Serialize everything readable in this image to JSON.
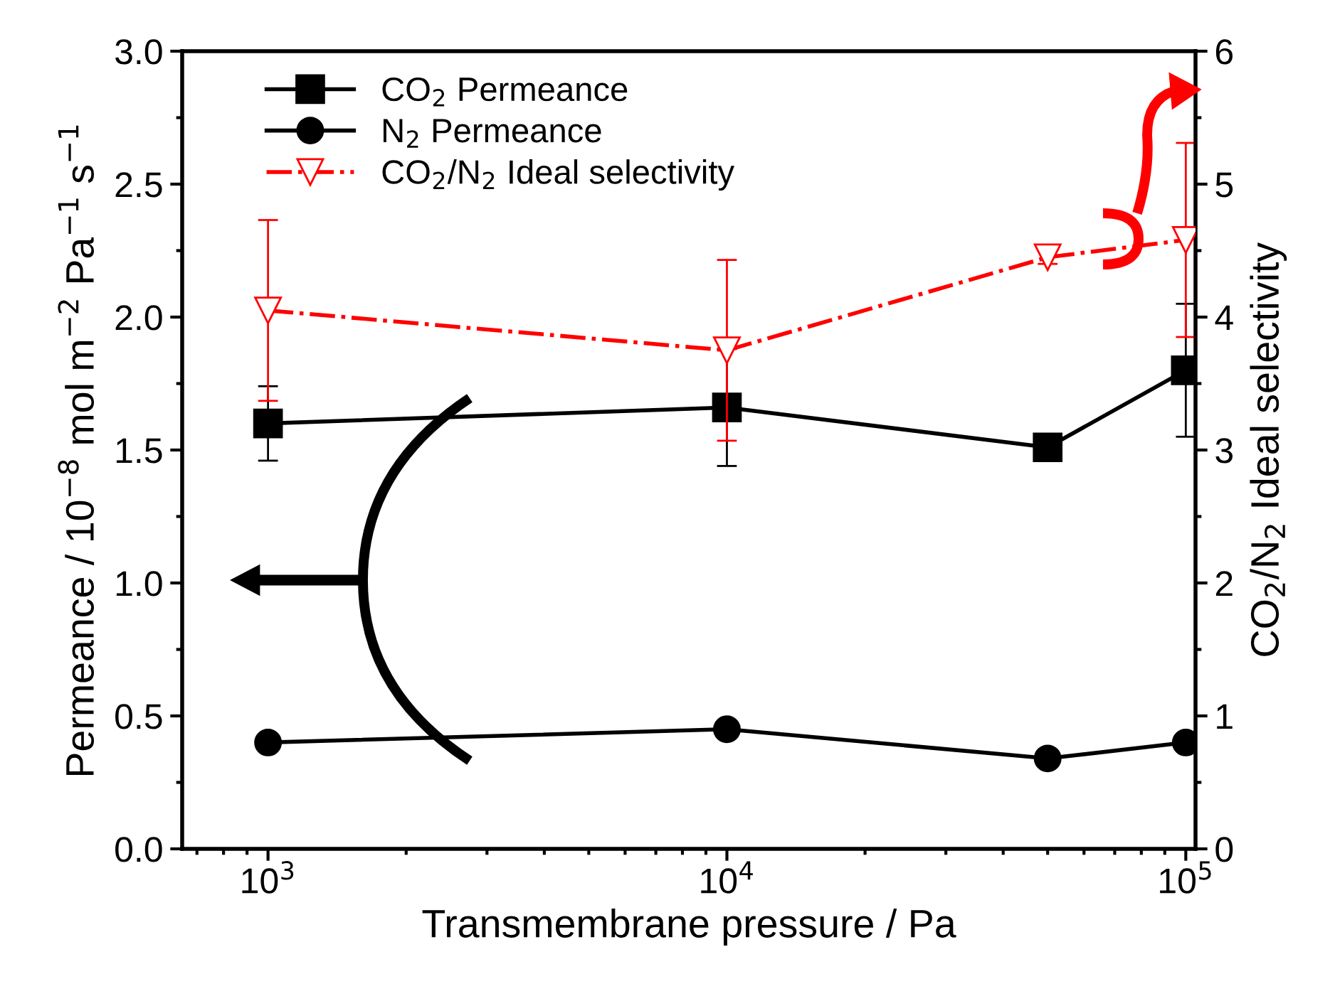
{
  "chart_data": {
    "type": "line",
    "xlabel": "Transmembrane pressure / Pa",
    "ylabel": "Permeance / 10$^{−8}$ mol m$^{−2}$ Pa$^{−1}$ s$^{−1}$",
    "y2label": "CO$_{2}$/N$_{2}$ Ideal selectivity",
    "x": [
      1000,
      10000,
      50000,
      100000
    ],
    "log": "x",
    "xlim": [
      650,
      105000
    ],
    "xticks": [
      {
        "value": 1000,
        "label": "10$^{3}$"
      },
      {
        "value": 10000,
        "label": "10$^{4}$"
      },
      {
        "value": 100000,
        "label": "10$^{5}$"
      }
    ],
    "ylim": [
      0.0,
      3.0
    ],
    "yticks": [
      {
        "value": 0,
        "label": "0.0"
      },
      0.5,
      {
        "value": 1,
        "label": "1.0"
      },
      1.5,
      {
        "value": 2,
        "label": "2.0"
      },
      2.5,
      {
        "value": 3,
        "label": "3.0"
      }
    ],
    "y2lim": [
      0,
      6
    ],
    "y2ticks": [
      0,
      1,
      2,
      3,
      4,
      5,
      6
    ],
    "legend": "top left",
    "grid": false,
    "series": [
      {
        "name": "CO$_{2}$ Permeance",
        "color": "#000000",
        "values": [
          1.6,
          1.66,
          1.51,
          1.8
        ],
        "errors": [
          0.14,
          0.22,
          null,
          0.25
        ],
        "marker": "square",
        "line_style": "solid"
      },
      {
        "name": "N$_{2}$ Permeance",
        "color": "#000000",
        "values": [
          0.4,
          0.45,
          0.34,
          0.4
        ],
        "marker": "circle",
        "line_style": "solid"
      },
      {
        "name": "CO$_{2}$/N$_{2}$ Ideal selectivity",
        "color": "#ff0000",
        "values": [
          4.05,
          3.75,
          4.45,
          4.58
        ],
        "errors": [
          0.68,
          0.68,
          0.05,
          0.73
        ],
        "marker": "triangle",
        "line_style": "dashdot",
        "axis": "y2"
      }
    ]
  }
}
